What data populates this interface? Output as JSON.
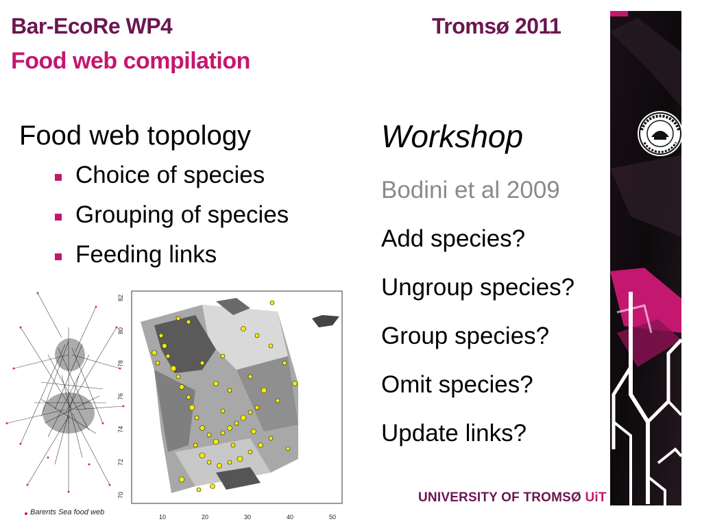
{
  "header": {
    "title": "Bar-EcoRe WP4",
    "subtitle": "Food web compilation",
    "location_year": "Tromsø 2011"
  },
  "left": {
    "heading": "Food web topology",
    "bullets": [
      "Choice of species",
      "Grouping of species",
      "Feeding links"
    ]
  },
  "right": {
    "heading": "Workshop",
    "reference": "Bodini et al 2009",
    "questions": [
      "Add species?",
      "Ungroup species?",
      "Group species?",
      "Omit species?",
      "Update links?"
    ]
  },
  "footer": {
    "university": "UNIVERSITY OF TROMSØ",
    "uit": "UiT"
  },
  "figure": {
    "caption": "Barents Sea food web",
    "map_y_ticks": [
      "82",
      "80",
      "78",
      "76",
      "74",
      "72",
      "70"
    ],
    "map_x_ticks": [
      "10",
      "20",
      "30",
      "40",
      "50"
    ]
  },
  "colors": {
    "plum": "#6b1650",
    "magenta": "#c4176f",
    "grey_ref": "#8a8a8a",
    "station_yellow": "#f5ec00"
  }
}
